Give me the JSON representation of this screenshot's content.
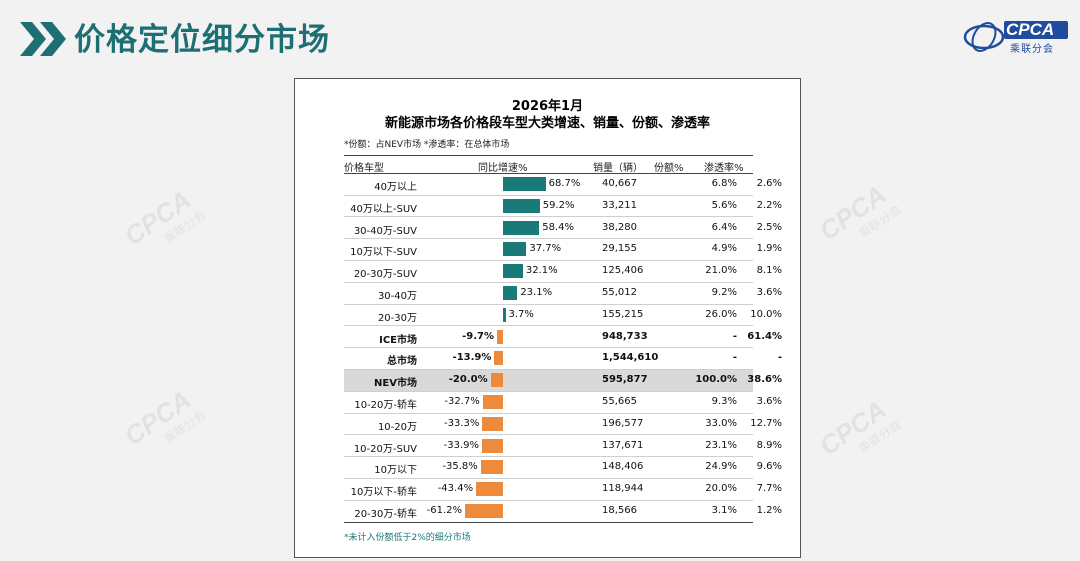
{
  "slide": {
    "title": "价格定位细分市场",
    "logo_text": "CPCA",
    "logo_sub": "乘联分会",
    "watermark": "CPCA"
  },
  "panel": {
    "title_line1": "2026年1月",
    "title_line2": "新能源市场各价格段车型大类增速、销量、份额、渗透率",
    "note": "*份额：占NEV市场    *渗透率：在总体市场",
    "footnote": "*未计入份额低于2%的细分市场",
    "headers": {
      "segment": "价格车型",
      "growth": "同比增速%",
      "volume": "销量（辆）",
      "share": "份额%",
      "penetration": "渗透率%"
    }
  },
  "colors": {
    "positive": "#197a78",
    "negative": "#ee8a3c",
    "title": "#1d6f73"
  },
  "chart_data": {
    "type": "table",
    "title": "新能源市场各价格段车型大类增速、销量、份额、渗透率",
    "subtitle": "2026年1月",
    "columns": [
      "价格车型",
      "同比增速%",
      "销量（辆）",
      "份额%",
      "渗透率%"
    ],
    "rows": [
      {
        "segment": "40万以上",
        "growth": 68.7,
        "growth_label": "68.7%",
        "volume": "40,667",
        "share": "6.8%",
        "penetration": "2.6%"
      },
      {
        "segment": "40万以上-SUV",
        "growth": 59.2,
        "growth_label": "59.2%",
        "volume": "33,211",
        "share": "5.6%",
        "penetration": "2.2%"
      },
      {
        "segment": "30-40万-SUV",
        "growth": 58.4,
        "growth_label": "58.4%",
        "volume": "38,280",
        "share": "6.4%",
        "penetration": "2.5%"
      },
      {
        "segment": "10万以下-SUV",
        "growth": 37.7,
        "growth_label": "37.7%",
        "volume": "29,155",
        "share": "4.9%",
        "penetration": "1.9%"
      },
      {
        "segment": "20-30万-SUV",
        "growth": 32.1,
        "growth_label": "32.1%",
        "volume": "125,406",
        "share": "21.0%",
        "penetration": "8.1%"
      },
      {
        "segment": "30-40万",
        "growth": 23.1,
        "growth_label": "23.1%",
        "volume": "55,012",
        "share": "9.2%",
        "penetration": "3.6%"
      },
      {
        "segment": "20-30万",
        "growth": 3.7,
        "growth_label": "3.7%",
        "volume": "155,215",
        "share": "26.0%",
        "penetration": "10.0%"
      },
      {
        "segment": "ICE市场",
        "growth": -9.7,
        "growth_label": "-9.7%",
        "volume": "948,733",
        "share": "-",
        "penetration": "61.4%",
        "bold": true
      },
      {
        "segment": "总市场",
        "growth": -13.9,
        "growth_label": "-13.9%",
        "volume": "1,544,610",
        "share": "-",
        "penetration": "-",
        "bold": true
      },
      {
        "segment": "NEV市场",
        "growth": -20.0,
        "growth_label": "-20.0%",
        "volume": "595,877",
        "share": "100.0%",
        "penetration": "38.6%",
        "bold": true,
        "highlight": true
      },
      {
        "segment": "10-20万-轿车",
        "growth": -32.7,
        "growth_label": "-32.7%",
        "volume": "55,665",
        "share": "9.3%",
        "penetration": "3.6%"
      },
      {
        "segment": "10-20万",
        "growth": -33.3,
        "growth_label": "-33.3%",
        "volume": "196,577",
        "share": "33.0%",
        "penetration": "12.7%"
      },
      {
        "segment": "10-20万-SUV",
        "growth": -33.9,
        "growth_label": "-33.9%",
        "volume": "137,671",
        "share": "23.1%",
        "penetration": "8.9%"
      },
      {
        "segment": "10万以下",
        "growth": -35.8,
        "growth_label": "-35.8%",
        "volume": "148,406",
        "share": "24.9%",
        "penetration": "9.6%"
      },
      {
        "segment": "10万以下-轿车",
        "growth": -43.4,
        "growth_label": "-43.4%",
        "volume": "118,944",
        "share": "20.0%",
        "penetration": "7.7%"
      },
      {
        "segment": "20-30万-轿车",
        "growth": -61.2,
        "growth_label": "-61.2%",
        "volume": "18,566",
        "share": "3.1%",
        "penetration": "1.2%"
      }
    ]
  }
}
